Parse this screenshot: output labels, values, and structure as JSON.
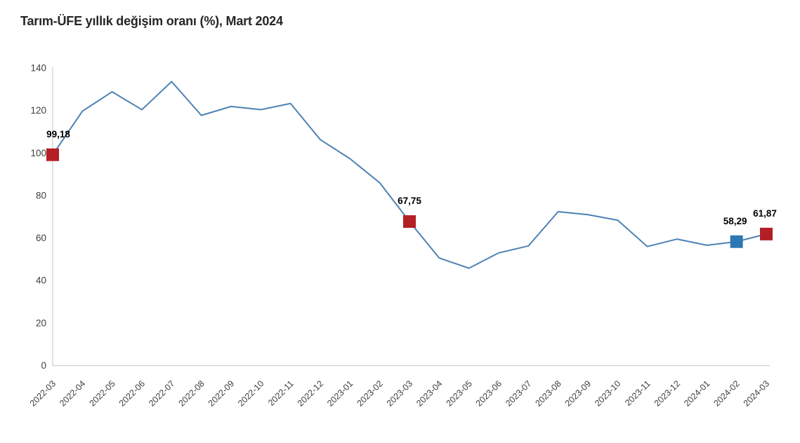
{
  "chart_data": {
    "type": "line",
    "title": "Tarım-ÜFE yıllık değişim oranı (%), Mart 2024",
    "x": [
      "2022-03",
      "2022-04",
      "2022-05",
      "2022-06",
      "2022-07",
      "2022-08",
      "2022-09",
      "2022-10",
      "2022-11",
      "2022-12",
      "2023-01",
      "2023-02",
      "2023-03",
      "2023-04",
      "2023-05",
      "2023-06",
      "2023-07",
      "2023-08",
      "2023-09",
      "2023-10",
      "2023-11",
      "2023-12",
      "2024-01",
      "2024-02",
      "2024-03"
    ],
    "values": [
      99.18,
      119.7,
      128.8,
      120.4,
      133.6,
      117.7,
      121.9,
      120.4,
      123.3,
      106.3,
      97.3,
      86.0,
      67.75,
      50.6,
      45.8,
      53.0,
      56.3,
      72.4,
      71.0,
      68.4,
      56.0,
      59.5,
      56.6,
      58.29,
      61.87
    ],
    "xlabel": "",
    "ylabel": "",
    "ylim": [
      0,
      140
    ],
    "yticks": [
      0,
      20,
      40,
      60,
      80,
      100,
      120,
      140
    ],
    "grid": false,
    "legend": false,
    "highlighted_points": [
      {
        "index": 0,
        "x": "2022-03",
        "value": 99.18,
        "label": "99,18",
        "color": "red",
        "label_dx": 8
      },
      {
        "index": 12,
        "x": "2023-03",
        "value": 67.75,
        "label": "67,75",
        "color": "red",
        "label_dx": 0
      },
      {
        "index": 23,
        "x": "2024-02",
        "value": 58.29,
        "label": "58,29",
        "color": "blue",
        "label_dx": -2
      },
      {
        "index": 24,
        "x": "2024-03",
        "value": 61.87,
        "label": "61,87",
        "color": "red",
        "label_dx": -2
      }
    ]
  },
  "colors": {
    "line": "#4d82b4",
    "marker_red": "#b22025",
    "marker_blue": "#2f76b5",
    "axis_line": "#d6d6d6",
    "tick_label": "#3f3f3f",
    "data_label": "#000000",
    "title_text": "#262626",
    "background": "#ffffff"
  }
}
